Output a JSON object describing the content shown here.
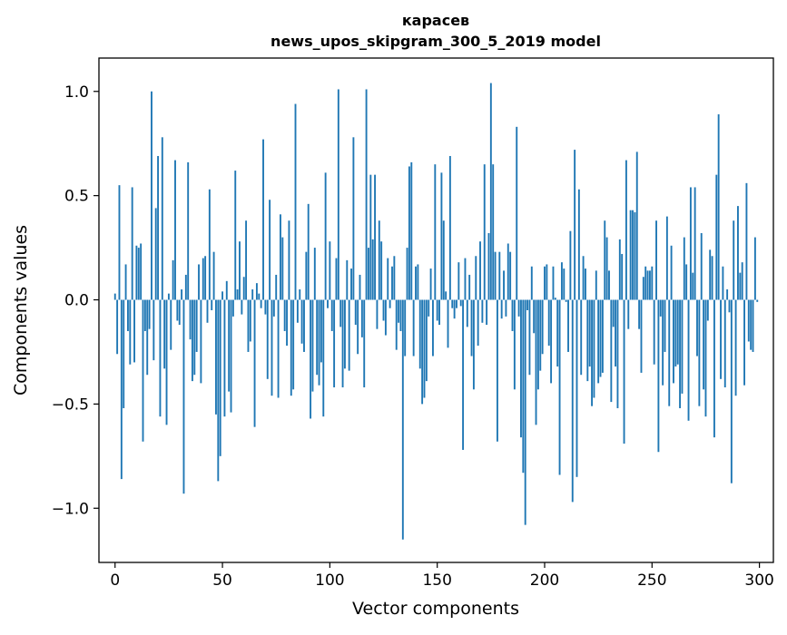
{
  "chart_data": {
    "type": "bar",
    "title": "карасев",
    "subtitle": "news_upos_skipgram_300_5_2019 model",
    "xlabel": "Vector components",
    "ylabel": "Components values",
    "xlim": [
      -7.5,
      306.5
    ],
    "ylim": [
      -1.26,
      1.16
    ],
    "xticks": [
      0,
      50,
      100,
      150,
      200,
      250,
      300
    ],
    "xtick_labels": [
      "0",
      "50",
      "100",
      "150",
      "200",
      "250",
      "300"
    ],
    "yticks": [
      -1.0,
      -0.5,
      0.0,
      0.5,
      1.0
    ],
    "ytick_labels": [
      "−1.0",
      "−0.5",
      "0.0",
      "0.5",
      "1.0"
    ],
    "grid": false,
    "legend": "none",
    "bar_color": "#1f77b4",
    "x": "0..299",
    "values": [
      0.03,
      -0.26,
      0.55,
      -0.86,
      -0.52,
      0.17,
      -0.15,
      -0.31,
      0.54,
      -0.3,
      0.26,
      0.25,
      0.27,
      -0.68,
      -0.15,
      -0.36,
      -0.14,
      1.0,
      -0.29,
      0.44,
      0.69,
      -0.56,
      0.78,
      -0.33,
      -0.6,
      0.03,
      -0.24,
      0.19,
      0.67,
      -0.1,
      -0.12,
      0.05,
      -0.93,
      0.12,
      0.66,
      -0.19,
      -0.39,
      -0.36,
      -0.25,
      0.17,
      -0.4,
      0.2,
      0.21,
      -0.11,
      0.53,
      -0.05,
      0.23,
      -0.55,
      -0.87,
      -0.75,
      0.04,
      -0.56,
      0.09,
      -0.44,
      -0.54,
      -0.08,
      0.62,
      0.05,
      0.28,
      -0.07,
      0.11,
      0.38,
      -0.25,
      -0.2,
      0.05,
      -0.61,
      0.08,
      0.03,
      -0.04,
      0.77,
      -0.07,
      -0.38,
      0.48,
      -0.46,
      -0.08,
      0.12,
      -0.47,
      0.41,
      0.3,
      -0.15,
      -0.22,
      0.38,
      -0.46,
      -0.43,
      0.94,
      -0.11,
      0.05,
      -0.21,
      -0.25,
      0.23,
      0.46,
      -0.57,
      -0.44,
      0.25,
      -0.36,
      -0.41,
      -0.3,
      -0.56,
      0.61,
      -0.04,
      0.28,
      -0.15,
      -0.42,
      0.2,
      1.01,
      -0.13,
      -0.42,
      -0.33,
      0.19,
      -0.34,
      0.15,
      0.78,
      -0.12,
      -0.26,
      0.12,
      -0.18,
      -0.42,
      1.01,
      0.25,
      0.6,
      0.29,
      0.6,
      -0.14,
      0.38,
      0.28,
      -0.1,
      -0.17,
      0.2,
      -0.04,
      0.16,
      0.21,
      -0.24,
      -0.11,
      -0.15,
      -1.15,
      -0.27,
      0.25,
      0.64,
      0.66,
      -0.27,
      0.16,
      0.17,
      -0.33,
      -0.5,
      -0.47,
      -0.39,
      -0.08,
      0.15,
      -0.27,
      0.65,
      -0.1,
      -0.12,
      0.61,
      0.38,
      0.04,
      -0.23,
      0.69,
      -0.04,
      -0.09,
      -0.04,
      0.18,
      -0.03,
      -0.72,
      0.2,
      -0.13,
      0.12,
      -0.27,
      -0.43,
      0.21,
      -0.22,
      0.28,
      -0.11,
      0.65,
      -0.12,
      0.32,
      1.04,
      0.65,
      0.23,
      -0.68,
      0.23,
      -0.09,
      0.14,
      -0.08,
      0.27,
      0.23,
      -0.15,
      -0.43,
      0.83,
      -0.08,
      -0.66,
      -0.83,
      -1.08,
      -0.05,
      -0.36,
      0.16,
      -0.16,
      -0.6,
      -0.43,
      -0.34,
      -0.26,
      0.16,
      0.17,
      -0.22,
      -0.4,
      0.16,
      0.01,
      -0.32,
      -0.84,
      0.18,
      0.15,
      -0.01,
      -0.25,
      0.33,
      -0.97,
      0.72,
      -0.85,
      0.53,
      -0.36,
      0.21,
      0.15,
      -0.39,
      -0.32,
      -0.51,
      -0.47,
      0.14,
      -0.4,
      -0.37,
      -0.35,
      0.38,
      0.3,
      0.14,
      -0.49,
      -0.13,
      -0.32,
      -0.52,
      0.29,
      0.22,
      -0.69,
      0.67,
      -0.14,
      0.43,
      0.43,
      0.42,
      0.71,
      -0.14,
      -0.35,
      0.11,
      0.16,
      0.14,
      0.14,
      0.16,
      -0.31,
      0.38,
      -0.73,
      -0.08,
      -0.41,
      -0.25,
      0.4,
      -0.51,
      0.26,
      -0.4,
      -0.32,
      -0.31,
      -0.52,
      -0.45,
      0.3,
      0.17,
      -0.58,
      0.54,
      0.13,
      0.54,
      -0.27,
      -0.51,
      0.32,
      -0.43,
      -0.56,
      -0.1,
      0.24,
      0.21,
      -0.66,
      0.6,
      0.89,
      -0.38,
      0.16,
      -0.42,
      0.05,
      -0.06,
      -0.88,
      0.38,
      -0.46,
      0.45,
      0.13,
      0.18,
      -0.41,
      0.56,
      -0.2,
      -0.24,
      -0.25,
      0.3,
      -0.01
    ]
  }
}
